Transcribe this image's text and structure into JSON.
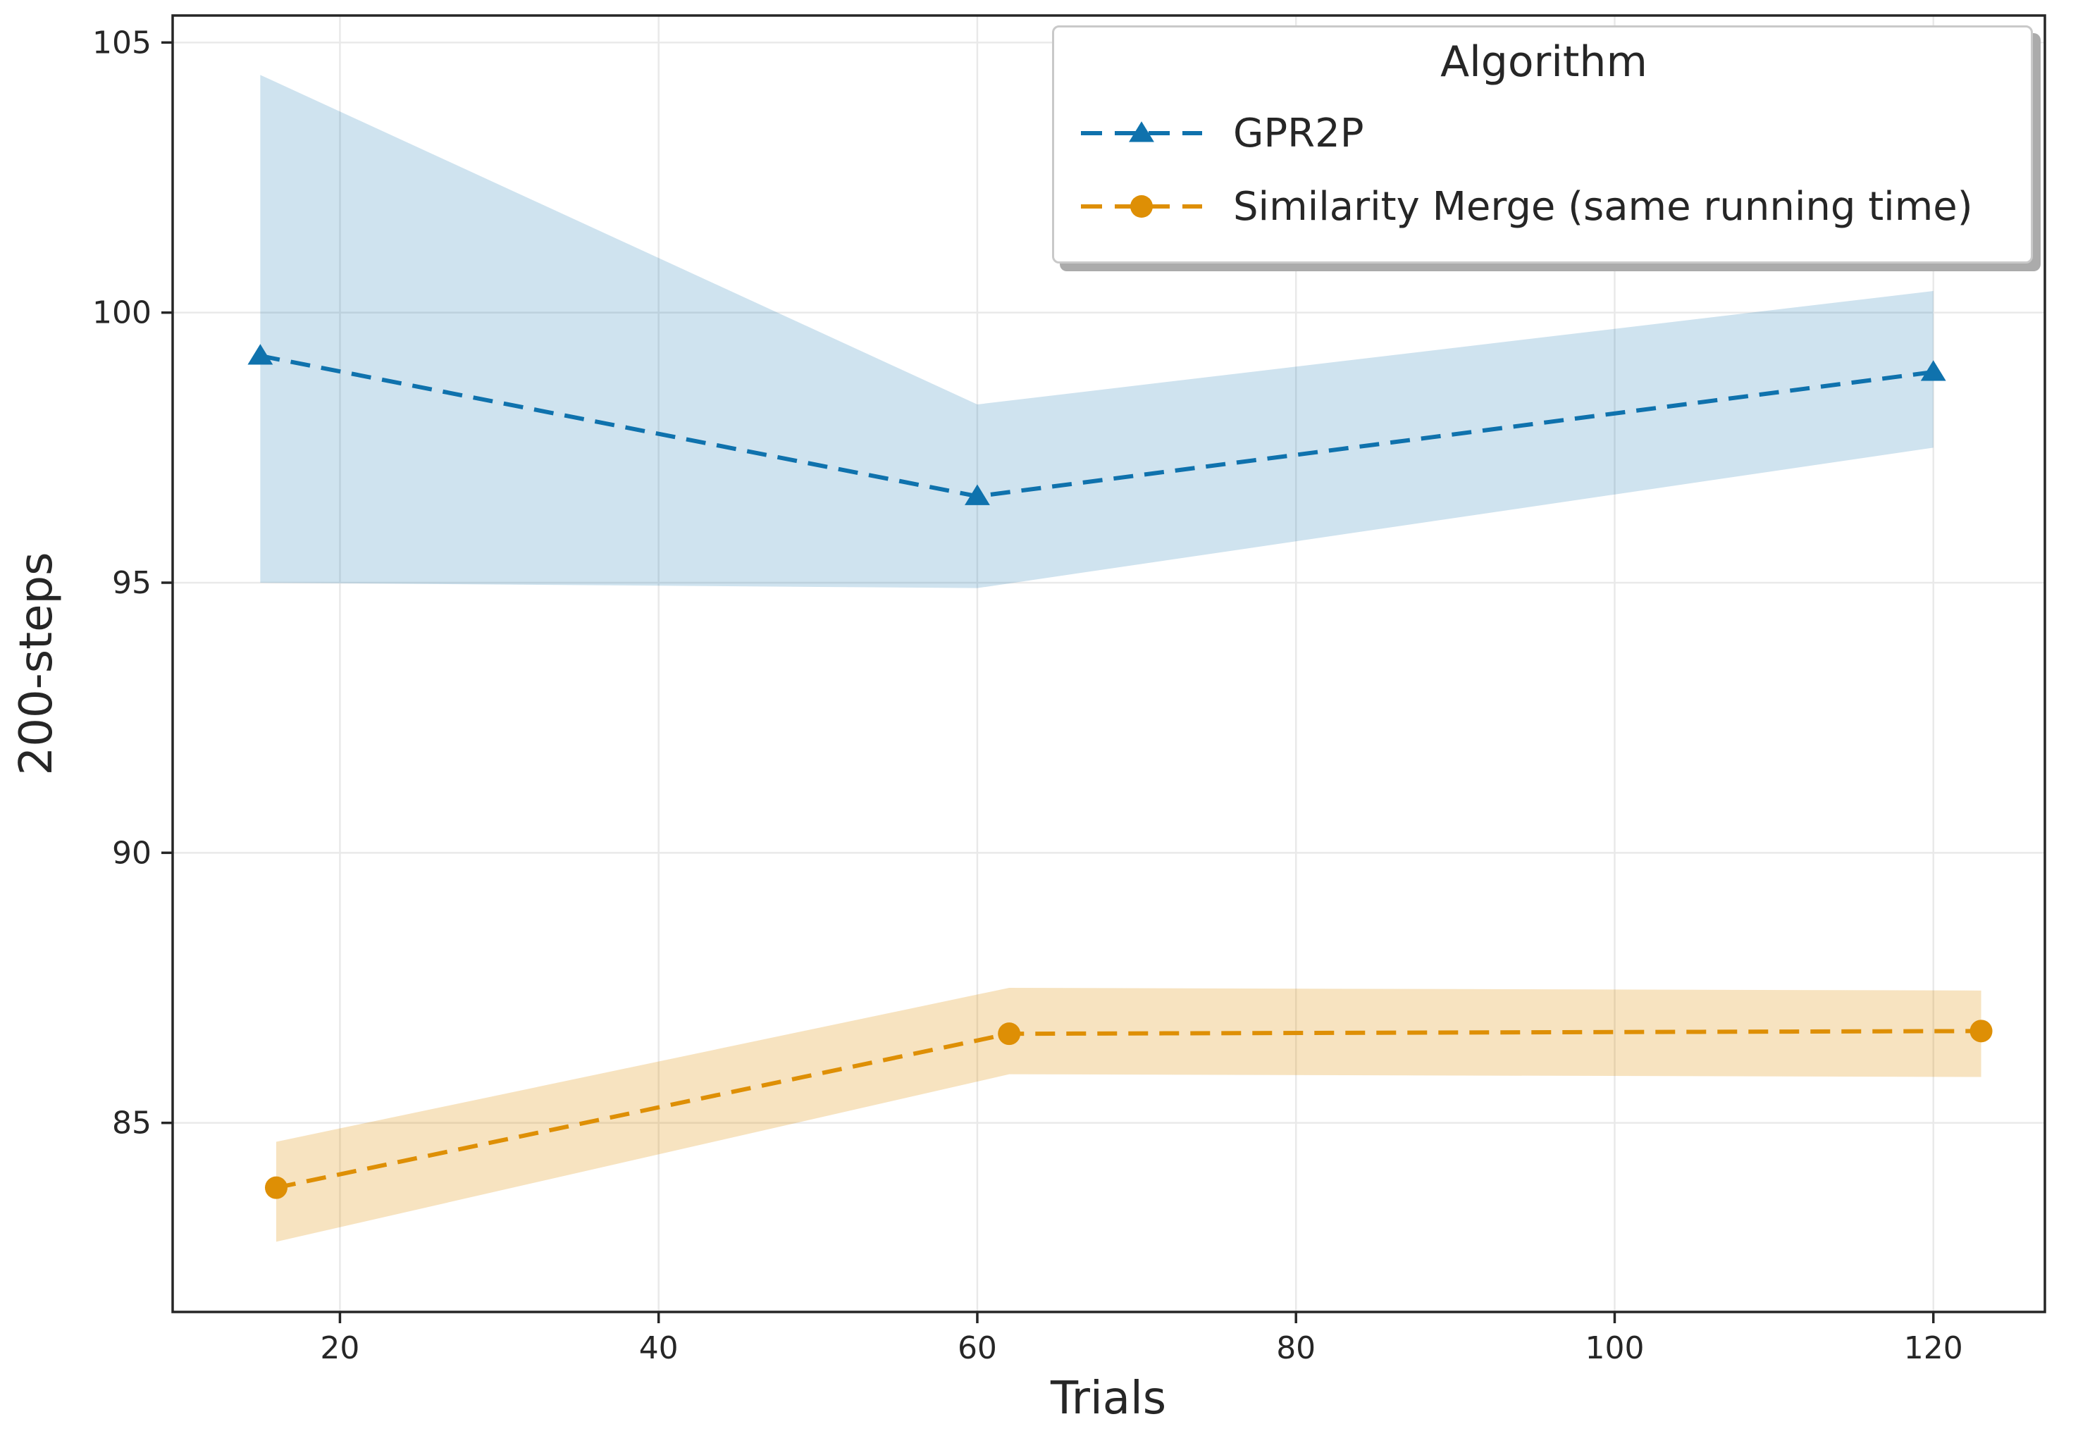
{
  "figure": {
    "background": "#ffffff"
  },
  "chart_data": {
    "type": "line",
    "title": "",
    "xlabel": "Trials",
    "ylabel": "200-steps",
    "xlim": [
      9.5,
      127.0
    ],
    "ylim": [
      81.5,
      105.5
    ],
    "xticks": [
      20,
      40,
      60,
      80,
      100,
      120
    ],
    "yticks": [
      85,
      90,
      95,
      100,
      105
    ],
    "grid": true,
    "style": {
      "grid_color": "#e9e9e9",
      "axis_color": "#262626",
      "tick_label_size": 44,
      "plot_background": "#ffffff"
    },
    "legend": {
      "title": "Algorithm",
      "position": "upper right"
    },
    "series": [
      {
        "name": "GPR2P",
        "color": "#0f72ad",
        "marker": "triangle",
        "linestyle": "dashed",
        "x": [
          15,
          60,
          120
        ],
        "y": [
          99.2,
          96.6,
          98.9
        ],
        "band_low": [
          95.0,
          94.9,
          97.5
        ],
        "band_high": [
          104.4,
          98.3,
          100.4
        ],
        "band_opacity": 0.2
      },
      {
        "name": "Similarity Merge (same running time)",
        "color": "#de8f05",
        "marker": "circle",
        "linestyle": "dashed",
        "x": [
          16,
          62,
          123
        ],
        "y": [
          83.8,
          86.65,
          86.7
        ],
        "band_low": [
          82.8,
          85.9,
          85.85
        ],
        "band_high": [
          84.65,
          87.5,
          87.45
        ],
        "band_opacity": 0.25
      }
    ]
  }
}
